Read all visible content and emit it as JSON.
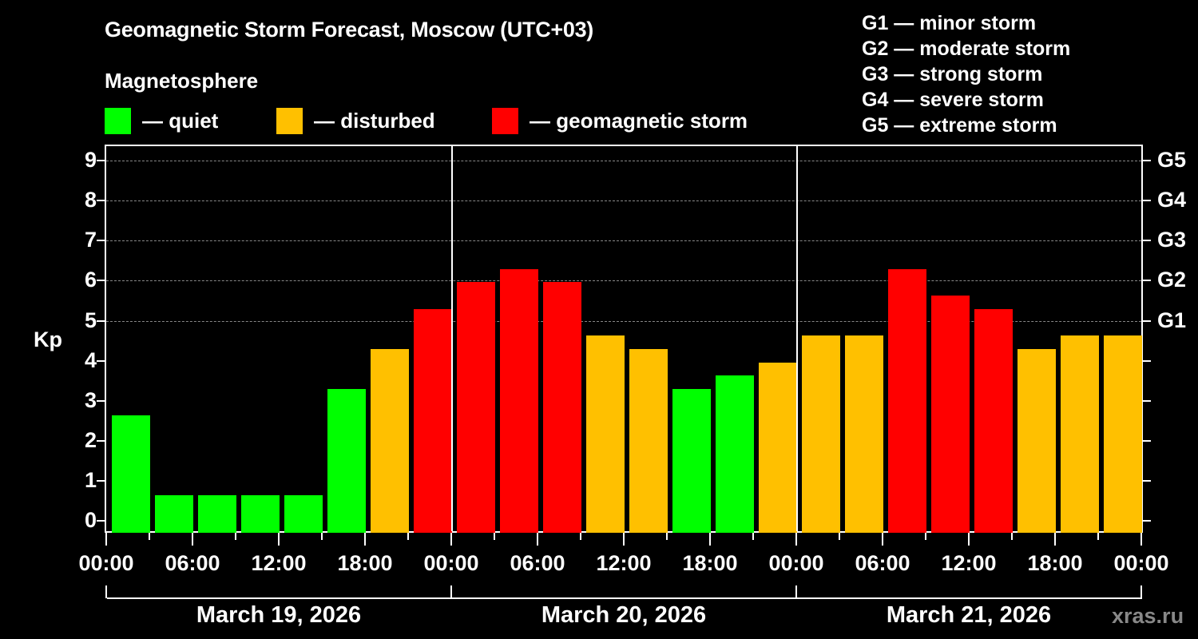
{
  "header": {
    "title": "Geomagnetic Storm Forecast, Moscow (UTC+03)",
    "subtitle": "Magnetosphere"
  },
  "legend": [
    {
      "label": "— quiet",
      "color": "#00ff00"
    },
    {
      "label": "— disturbed",
      "color": "#ffc000"
    },
    {
      "label": "— geomagnetic storm",
      "color": "#ff0000"
    }
  ],
  "g_scale_legend": [
    "G1 — minor storm",
    "G2 — moderate storm",
    "G3 — strong storm",
    "G4 — severe storm",
    "G5 — extreme storm"
  ],
  "axes": {
    "y_label": "Kp",
    "y_ticks": [
      "0",
      "1",
      "2",
      "3",
      "4",
      "5",
      "6",
      "7",
      "8",
      "9"
    ],
    "g_ticks": [
      {
        "kp": 5,
        "label": "G1"
      },
      {
        "kp": 6,
        "label": "G2"
      },
      {
        "kp": 7,
        "label": "G3"
      },
      {
        "kp": 8,
        "label": "G4"
      },
      {
        "kp": 9,
        "label": "G5"
      }
    ],
    "x_ticks": [
      "00:00",
      "06:00",
      "12:00",
      "18:00",
      "00:00",
      "06:00",
      "12:00",
      "18:00",
      "00:00",
      "06:00",
      "12:00",
      "18:00",
      "00:00"
    ],
    "days": [
      "March 19, 2026",
      "March 20, 2026",
      "March 21, 2026"
    ]
  },
  "watermark": "xras.ru",
  "colors": {
    "quiet": "#00ff00",
    "disturbed": "#ffc000",
    "storm": "#ff0000",
    "background": "#000000",
    "grid": "#888888"
  },
  "chart_data": {
    "type": "bar",
    "title": "Geomagnetic Storm Forecast, Moscow (UTC+03)",
    "xlabel": "",
    "ylabel": "Kp",
    "ylim": [
      0,
      9
    ],
    "y2_labels": {
      "5": "G1",
      "6": "G2",
      "7": "G3",
      "8": "G4",
      "9": "G5"
    },
    "grid": "horizontal dashed at 5,6,7,8,9",
    "legend_position": "top",
    "categories": [
      "Mar 19 00-03",
      "Mar 19 03-06",
      "Mar 19 06-09",
      "Mar 19 09-12",
      "Mar 19 12-15",
      "Mar 19 15-18",
      "Mar 19 18-21",
      "Mar 19 21-24",
      "Mar 20 00-03",
      "Mar 20 03-06",
      "Mar 20 06-09",
      "Mar 20 09-12",
      "Mar 20 12-15",
      "Mar 20 15-18",
      "Mar 20 18-21",
      "Mar 20 21-24",
      "Mar 21 00-03",
      "Mar 21 03-06",
      "Mar 21 06-09",
      "Mar 21 09-12",
      "Mar 21 12-15",
      "Mar 21 15-18",
      "Mar 21 18-21",
      "Mar 21 21-24"
    ],
    "values": [
      2.67,
      0.67,
      0.67,
      0.67,
      0.67,
      3.33,
      4.33,
      5.33,
      6.0,
      6.33,
      6.0,
      4.67,
      4.33,
      3.33,
      3.67,
      4.0,
      4.67,
      4.67,
      6.33,
      5.67,
      5.33,
      4.33,
      4.67,
      4.67
    ],
    "status": [
      "quiet",
      "quiet",
      "quiet",
      "quiet",
      "quiet",
      "quiet",
      "disturbed",
      "storm",
      "storm",
      "storm",
      "storm",
      "disturbed",
      "disturbed",
      "quiet",
      "quiet",
      "disturbed",
      "disturbed",
      "disturbed",
      "storm",
      "storm",
      "storm",
      "disturbed",
      "disturbed",
      "disturbed"
    ]
  }
}
